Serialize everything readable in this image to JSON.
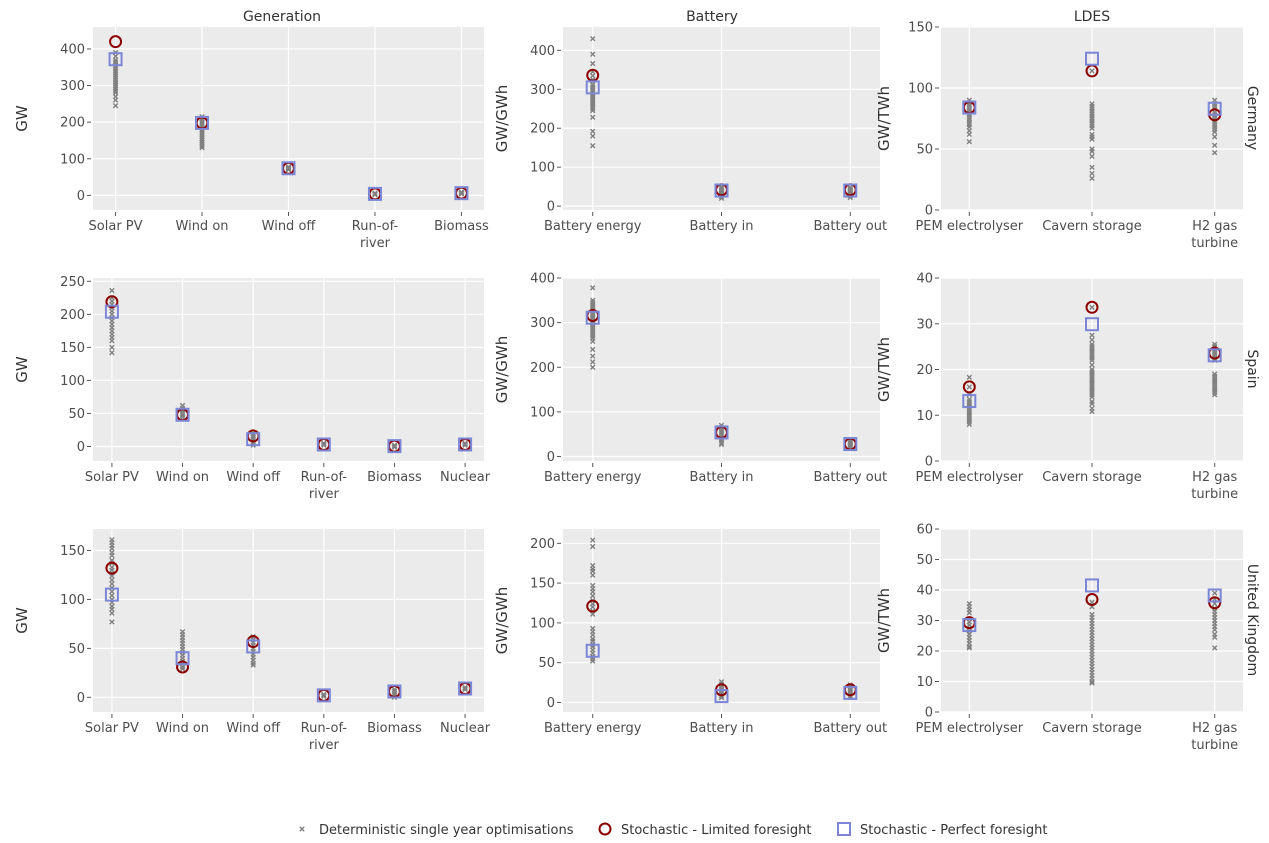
{
  "figure": {
    "column_titles": [
      "Generation",
      "Battery",
      "LDES"
    ],
    "row_titles": [
      "Germany",
      "Spain",
      "United Kingdom"
    ],
    "legend": [
      {
        "label": "Deterministic single year optimisations",
        "marker": "x",
        "color": "#808080"
      },
      {
        "label": "Stochastic - Limited foresight",
        "marker": "circle-open",
        "color": "#8b0000"
      },
      {
        "label": "Stochastic - Perfect foresight",
        "marker": "square-open",
        "color": "#7b86d6"
      }
    ],
    "colors": {
      "panel_bg": "#ebebeb",
      "grid": "#ffffff",
      "deterministic": "#808080",
      "limited": "#8b0000",
      "perfect": "#7b86d6"
    }
  },
  "chart_data": [
    {
      "type": "scatter",
      "row": "Germany",
      "column": "Generation",
      "ylabel": "GW",
      "ylim": [
        -40,
        460
      ],
      "yticks": [
        0,
        100,
        200,
        300,
        400
      ],
      "categories": [
        "Solar PV",
        "Wind on",
        "Wind off",
        "Run-of-\nriver",
        "Biomass"
      ],
      "limited": [
        420,
        198,
        74,
        4,
        6
      ],
      "perfect": [
        372,
        198,
        74,
        4,
        6
      ],
      "deterministic": [
        [
          390,
          380,
          370,
          365,
          360,
          355,
          350,
          345,
          340,
          335,
          330,
          325,
          320,
          315,
          310,
          305,
          300,
          295,
          290,
          285,
          280,
          270,
          260,
          245
        ],
        [
          215,
          210,
          205,
          200,
          195,
          190,
          185,
          180,
          175,
          170,
          165,
          160,
          155,
          150,
          145,
          140,
          135,
          130
        ],
        [
          78,
          76,
          74,
          72,
          70
        ],
        [
          6,
          5,
          4,
          3,
          2
        ],
        [
          9,
          8,
          7,
          6,
          5,
          4
        ]
      ]
    },
    {
      "type": "scatter",
      "row": "Germany",
      "column": "Battery",
      "ylabel": "GW/GWh",
      "ylim": [
        -10,
        460
      ],
      "yticks": [
        0,
        100,
        200,
        300,
        400
      ],
      "categories": [
        "Battery energy",
        "Battery in",
        "Battery out"
      ],
      "limited": [
        336,
        42,
        42
      ],
      "perfect": [
        305,
        40,
        40
      ],
      "deterministic": [
        [
          430,
          390,
          366,
          345,
          335,
          325,
          320,
          312,
          306,
          300,
          295,
          290,
          285,
          280,
          275,
          270,
          265,
          260,
          255,
          250,
          245,
          228,
          192,
          180,
          155
        ],
        [
          50,
          46,
          42,
          40,
          38,
          35,
          32,
          28,
          25,
          20
        ],
        [
          48,
          45,
          42,
          40,
          37,
          34,
          30,
          26,
          22
        ]
      ]
    },
    {
      "type": "scatter",
      "row": "Germany",
      "column": "LDES",
      "ylabel": "GW/TWh",
      "ylim": [
        0,
        150
      ],
      "yticks": [
        0,
        50,
        100,
        150
      ],
      "categories": [
        "PEM electrolyser",
        "Cavern storage",
        "H2 gas\nturbine"
      ],
      "limited": [
        84,
        114,
        78
      ],
      "perfect": [
        84,
        124,
        83
      ],
      "deterministic": [
        [
          90,
          88,
          86,
          84,
          82,
          80,
          78,
          76,
          74,
          72,
          70,
          68,
          65,
          62,
          56
        ],
        [
          114,
          87,
          85,
          83,
          81,
          79,
          77,
          75,
          73,
          71,
          69,
          67,
          62,
          60,
          58,
          50,
          48,
          44,
          35,
          30,
          26
        ],
        [
          90,
          87,
          85,
          83,
          80,
          78,
          76,
          74,
          72,
          70,
          68,
          66,
          64,
          60,
          53,
          47
        ]
      ]
    },
    {
      "type": "scatter",
      "row": "Spain",
      "column": "Generation",
      "ylabel": "GW",
      "ylim": [
        -22,
        255
      ],
      "yticks": [
        0,
        50,
        100,
        150,
        200,
        250
      ],
      "categories": [
        "Solar PV",
        "Wind on",
        "Wind off",
        "Run-of-\nriver",
        "Biomass",
        "Nuclear"
      ],
      "limited": [
        219,
        48,
        16,
        3,
        0.5,
        3
      ],
      "perfect": [
        204,
        48,
        11,
        3,
        0.5,
        3
      ],
      "deterministic": [
        [
          236,
          225,
          220,
          215,
          210,
          205,
          200,
          195,
          190,
          185,
          180,
          175,
          170,
          165,
          160,
          150,
          142
        ],
        [
          62,
          58,
          54,
          50,
          47,
          44
        ],
        [
          20,
          17,
          14,
          11,
          8,
          5,
          2
        ],
        [
          5,
          4,
          3,
          2
        ],
        [
          2,
          1,
          0,
          -1
        ],
        [
          5,
          4,
          3,
          2
        ]
      ]
    },
    {
      "type": "scatter",
      "row": "Spain",
      "column": "Battery",
      "ylabel": "GW/GWh",
      "ylim": [
        -10,
        400
      ],
      "yticks": [
        0,
        100,
        200,
        300,
        400
      ],
      "categories": [
        "Battery energy",
        "Battery in",
        "Battery out"
      ],
      "limited": [
        316,
        54,
        28
      ],
      "perfect": [
        311,
        54,
        28
      ],
      "deterministic": [
        [
          378,
          350,
          345,
          340,
          335,
          330,
          325,
          320,
          315,
          310,
          305,
          300,
          295,
          290,
          285,
          280,
          275,
          270,
          265,
          258,
          240,
          225,
          212,
          200
        ],
        [
          70,
          65,
          60,
          55,
          50,
          45,
          40,
          35,
          30,
          27
        ],
        [
          36,
          33,
          30,
          28,
          26,
          24,
          22
        ]
      ]
    },
    {
      "type": "scatter",
      "row": "Spain",
      "column": "LDES",
      "ylabel": "GW/TWh",
      "ylim": [
        0,
        40
      ],
      "yticks": [
        0,
        10,
        20,
        30,
        40
      ],
      "categories": [
        "PEM electrolyser",
        "Cavern storage",
        "H2 gas\nturbine"
      ],
      "limited": [
        16.2,
        33.6,
        23.6
      ],
      "perfect": [
        13.1,
        29.9,
        23.1
      ],
      "deterministic": [
        [
          18.3,
          16.2,
          14.5,
          13.5,
          13,
          12.5,
          12,
          11.5,
          11,
          10.5,
          10,
          9.5,
          9,
          8.5,
          8
        ],
        [
          33.6,
          27.5,
          26.5,
          25.5,
          25,
          24.5,
          24,
          23.5,
          23,
          22.5,
          22,
          21,
          20,
          19.5,
          19,
          18.5,
          18,
          17.5,
          17,
          16.5,
          16,
          15.5,
          15,
          14.5,
          14,
          13,
          12.5,
          11.5,
          10.8
        ],
        [
          25.5,
          25,
          24.5,
          24,
          23.5,
          23,
          22.5,
          22,
          19,
          18.5,
          18,
          17.5,
          17,
          16.5,
          16,
          15.5,
          15,
          14.5
        ]
      ]
    },
    {
      "type": "scatter",
      "row": "United Kingdom",
      "column": "Generation",
      "ylabel": "GW",
      "ylim": [
        -15,
        172
      ],
      "yticks": [
        0,
        50,
        100,
        150
      ],
      "categories": [
        "Solar PV",
        "Wind on",
        "Wind off",
        "Run-of-\nriver",
        "Biomass",
        "Nuclear"
      ],
      "limited": [
        132,
        31,
        57,
        2,
        6,
        9
      ],
      "perfect": [
        105,
        40,
        52,
        2,
        6,
        9
      ],
      "deterministic": [
        [
          161,
          158,
          155,
          152,
          148,
          145,
          140,
          137,
          133,
          130,
          127,
          124,
          120,
          116,
          112,
          108,
          104,
          100,
          97,
          93,
          90,
          86,
          77
        ],
        [
          67,
          64,
          61,
          58,
          55,
          52,
          49,
          46,
          43,
          40,
          37,
          34,
          31,
          29
        ],
        [
          62,
          59,
          56,
          53,
          50,
          47,
          44,
          41,
          38,
          35,
          33
        ],
        [
          3,
          2,
          1
        ],
        [
          8,
          6,
          4,
          2,
          0
        ],
        [
          10,
          9,
          8
        ]
      ]
    },
    {
      "type": "scatter",
      "row": "United Kingdom",
      "column": "Battery",
      "ylabel": "GW/GWh",
      "ylim": [
        -12,
        218
      ],
      "yticks": [
        0,
        50,
        100,
        150,
        200
      ],
      "categories": [
        "Battery energy",
        "Battery in",
        "Battery out"
      ],
      "limited": [
        121,
        16,
        16
      ],
      "perfect": [
        65,
        8,
        12
      ],
      "deterministic": [
        [
          204,
          196,
          172,
          168,
          165,
          160,
          147,
          143,
          139,
          134,
          128,
          124,
          120,
          115,
          111,
          93,
          89,
          85,
          80,
          77,
          73,
          70,
          66,
          62,
          58,
          55,
          52
        ],
        [
          26,
          23,
          20,
          17,
          14,
          11,
          8,
          6
        ],
        [
          22,
          19,
          17,
          15,
          13,
          11,
          9,
          7
        ]
      ]
    },
    {
      "type": "scatter",
      "row": "United Kingdom",
      "column": "LDES",
      "ylabel": "GW/TWh",
      "ylim": [
        0,
        60
      ],
      "yticks": [
        0,
        10,
        20,
        30,
        40,
        50,
        60
      ],
      "categories": [
        "PEM electrolyser",
        "Cavern storage",
        "H2 gas\nturbine"
      ],
      "limited": [
        29.3,
        36.9,
        35.8
      ],
      "perfect": [
        28.5,
        41.5,
        38.2
      ],
      "deterministic": [
        [
          35.5,
          34.5,
          33.5,
          32.5,
          30.5,
          29.5,
          28.5,
          27.5,
          26.5,
          25.5,
          24.5,
          23.5,
          22.5,
          21.5,
          21
        ],
        [
          36,
          34.5,
          32,
          31,
          30,
          29,
          28,
          27,
          26,
          25,
          24,
          23,
          22,
          21,
          20,
          19,
          18,
          17,
          16,
          15,
          14,
          13,
          12,
          11,
          10,
          9.5
        ],
        [
          39,
          37,
          35.5,
          34,
          33,
          32,
          31,
          30,
          29,
          28,
          27,
          25.5,
          24.5,
          21
        ]
      ]
    }
  ]
}
